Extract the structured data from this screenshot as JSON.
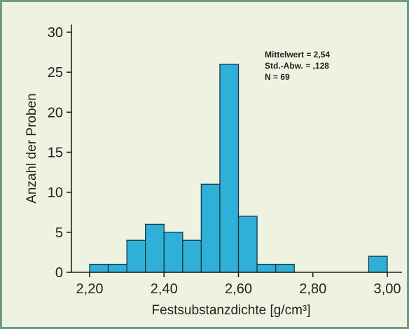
{
  "chart_data": {
    "type": "bar",
    "title": "",
    "xlabel": "Festsubstanzdichte [g/cm³]",
    "ylabel": "Anzahl der Proben",
    "xlim": [
      2.2,
      3.0
    ],
    "ylim": [
      0,
      30
    ],
    "x_ticks": [
      "2,20",
      "2,40",
      "2,60",
      "2,80",
      "3,00"
    ],
    "y_ticks": [
      "0",
      "5",
      "10",
      "15",
      "20",
      "25",
      "30"
    ],
    "bins": [
      {
        "start": 2.2,
        "end": 2.25,
        "value": 1
      },
      {
        "start": 2.25,
        "end": 2.3,
        "value": 1
      },
      {
        "start": 2.3,
        "end": 2.35,
        "value": 4
      },
      {
        "start": 2.35,
        "end": 2.4,
        "value": 6
      },
      {
        "start": 2.4,
        "end": 2.45,
        "value": 5
      },
      {
        "start": 2.45,
        "end": 2.5,
        "value": 4
      },
      {
        "start": 2.5,
        "end": 2.55,
        "value": 11
      },
      {
        "start": 2.55,
        "end": 2.6,
        "value": 26
      },
      {
        "start": 2.6,
        "end": 2.65,
        "value": 7
      },
      {
        "start": 2.65,
        "end": 2.7,
        "value": 1
      },
      {
        "start": 2.7,
        "end": 2.75,
        "value": 1
      },
      {
        "start": 2.95,
        "end": 3.0,
        "value": 2
      }
    ],
    "stats": [
      "Mittelwert = 2,54",
      "Std.-Abw. = ,128",
      "N = 69"
    ],
    "grid": false,
    "colors": {
      "bar": "#2fb0d8",
      "bar_edge": "#14384a",
      "background": "#eef2e1",
      "frame": "#6f9a86"
    }
  }
}
